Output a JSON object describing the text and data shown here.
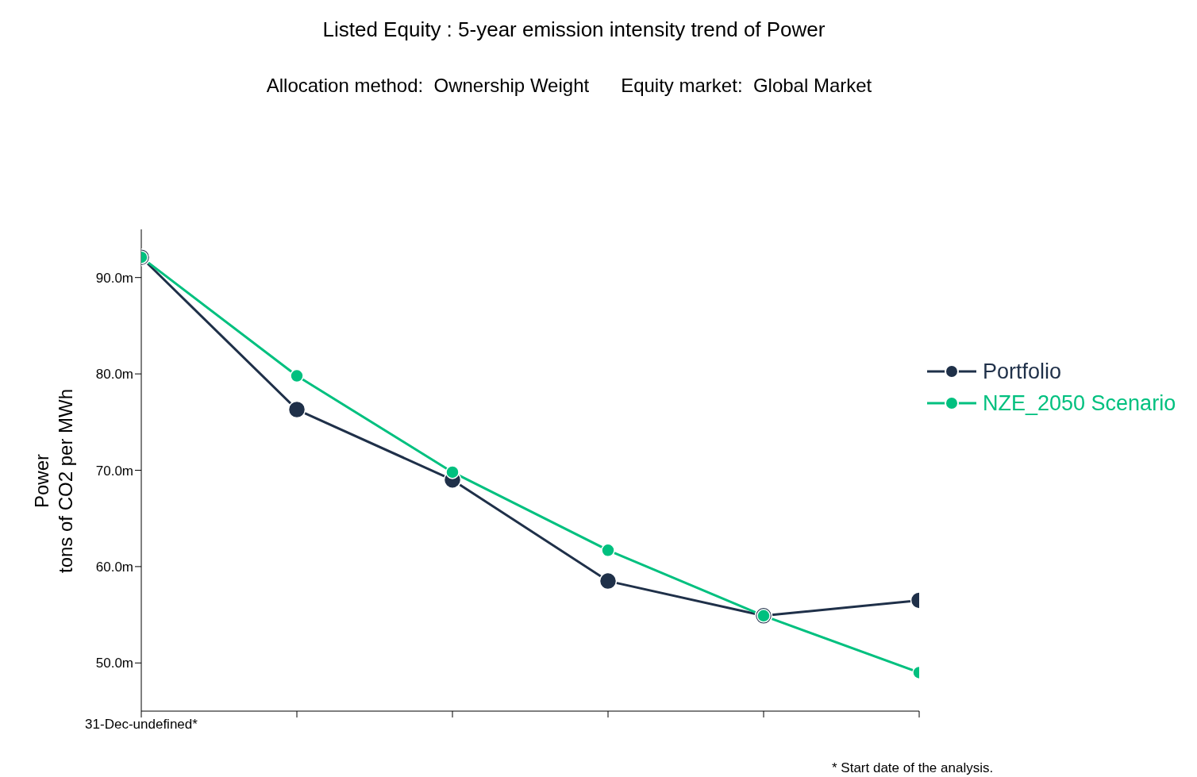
{
  "chart_data": {
    "type": "line",
    "title": "Listed Equity : 5-year emission intensity trend of  Power",
    "subtitle": "Allocation method:  Ownership Weight      Equity market:  Global Market",
    "ylabel": "Power\ntons of CO2 per MWh",
    "categories": [
      "31-Dec-undefined*",
      null,
      null,
      null,
      null,
      null
    ],
    "series": [
      {
        "name": "Portfolio",
        "color": "#1f3049",
        "values": [
          92.1,
          76.3,
          69.0,
          58.5,
          54.9,
          56.5
        ]
      },
      {
        "name": "NZE_2050 Scenario",
        "color": "#00c07f",
        "values": [
          92.1,
          79.8,
          69.8,
          61.7,
          54.9,
          49.0
        ]
      }
    ],
    "ylim": [
      45,
      95
    ],
    "yticks": [
      {
        "value": 50,
        "label": "50.0m"
      },
      {
        "value": 60,
        "label": "60.0m"
      },
      {
        "value": 70,
        "label": "70.0m"
      },
      {
        "value": 80,
        "label": "80.0m"
      },
      {
        "value": 90,
        "label": "90.0m"
      }
    ],
    "grid": false,
    "legend": "right",
    "marker": "circle",
    "line_style": "solid",
    "annotations": [
      "* Start date of the analysis."
    ]
  }
}
